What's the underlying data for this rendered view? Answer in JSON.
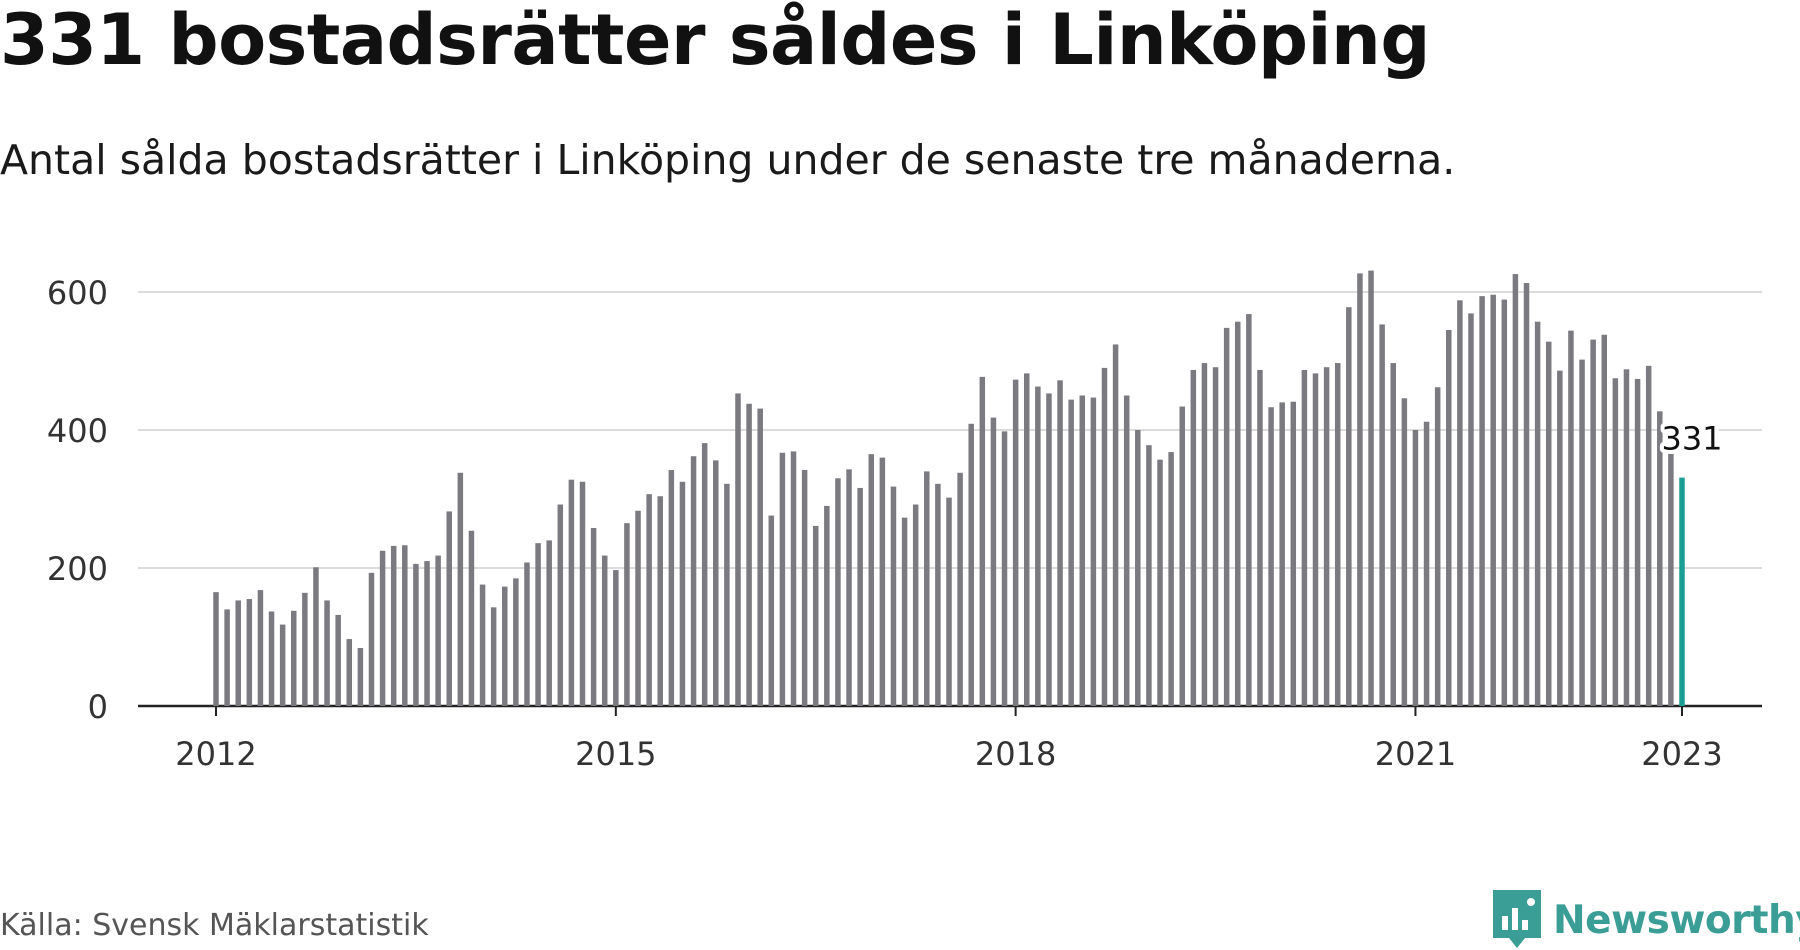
{
  "title": "331 bostadsrätter såldes i Linköping",
  "subtitle": "Antal sålda bostadsrätter i Linköping under de senaste tre månaderna.",
  "source": "Källa: Svensk Mäklarstatistik",
  "brand": {
    "name": "Newsworthy",
    "icon": "newsworthy-logo-icon",
    "color": "#3a9e96"
  },
  "colors": {
    "bar": "#7a7a80",
    "highlight": "#1a9e94",
    "grid": "#dcdcdc",
    "axis": "#222222"
  },
  "chart_data": {
    "type": "bar",
    "x_start": "2012-01",
    "x_end": "2023-01",
    "xticks": [
      "2012",
      "2015",
      "2018",
      "2021",
      "2023"
    ],
    "yticks": [
      0,
      200,
      400,
      600
    ],
    "ylim": [
      0,
      640
    ],
    "grid": true,
    "values": [
      165,
      140,
      153,
      155,
      168,
      137,
      118,
      138,
      164,
      201,
      153,
      132,
      97,
      84,
      193,
      225,
      232,
      233,
      206,
      210,
      218,
      282,
      338,
      254,
      176,
      143,
      173,
      185,
      208,
      236,
      240,
      292,
      328,
      325,
      258,
      218,
      197,
      265,
      283,
      307,
      304,
      342,
      325,
      362,
      381,
      356,
      322,
      453,
      438,
      431,
      276,
      367,
      369,
      342,
      261,
      290,
      330,
      343,
      316,
      365,
      360,
      318,
      273,
      292,
      340,
      322,
      302,
      338,
      409,
      477,
      418,
      398,
      473,
      482,
      463,
      453,
      472,
      444,
      450,
      447,
      490,
      524,
      450,
      400,
      378,
      357,
      368,
      434,
      487,
      497,
      491,
      548,
      557,
      568,
      487,
      433,
      440,
      441,
      487,
      482,
      491,
      497,
      578,
      627,
      631,
      553,
      497,
      446,
      400,
      412,
      462,
      545,
      588,
      569,
      594,
      596,
      589,
      626,
      613,
      557,
      528,
      486,
      544,
      502,
      531,
      538,
      475,
      488,
      474,
      493,
      427,
      370,
      331
    ],
    "highlight_label": "331"
  }
}
